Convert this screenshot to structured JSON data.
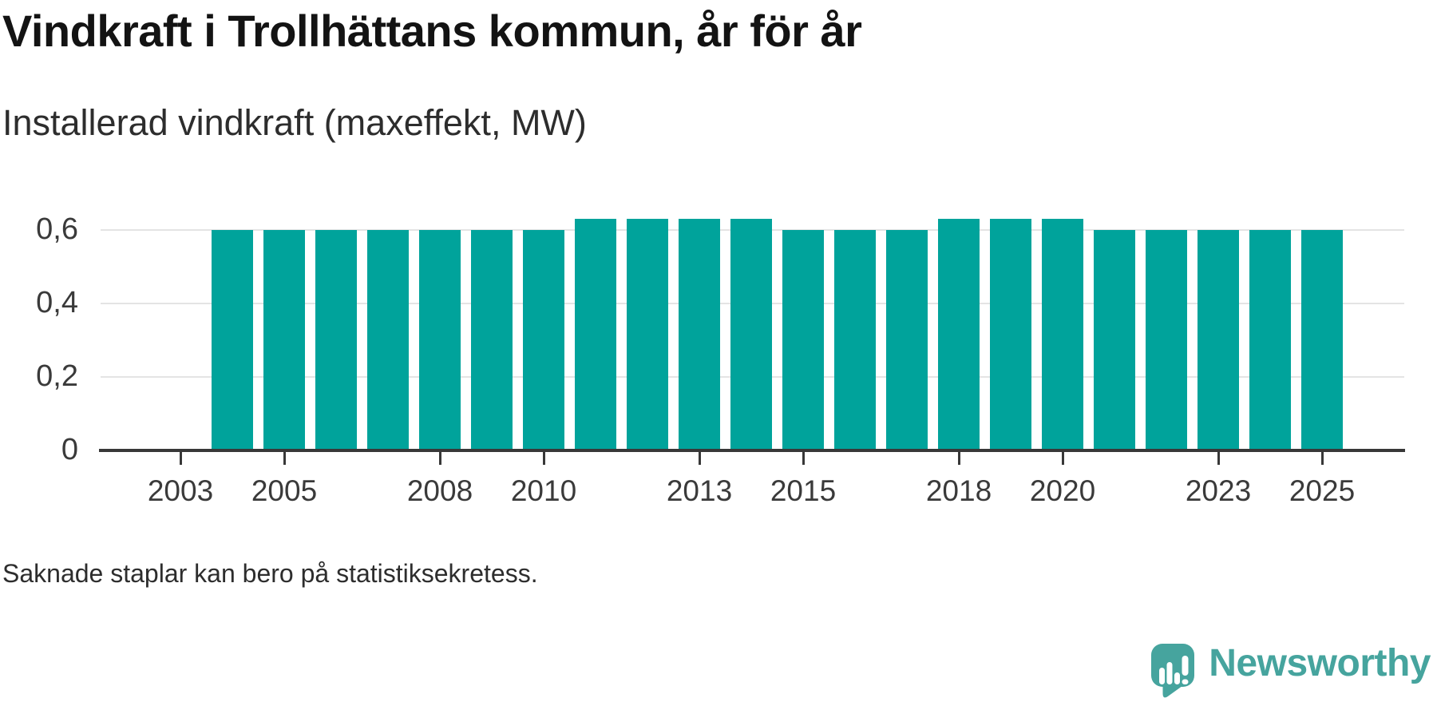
{
  "title": "Vindkraft i Trollhättans kommun, år för år",
  "subtitle": "Installerad vindkraft (maxeffekt, MW)",
  "footnote": "Saknade staplar kan bero på statistiksekretess.",
  "branding": {
    "wordmark": "Newsworthy",
    "logo_icon": "newsworthy-pin-logo",
    "brand_color": "#46a49e"
  },
  "colors": {
    "bar": "#00a39b",
    "axis": "#383838",
    "gridline": "#e4e4e4",
    "tick_label": "#3a3a3a",
    "title": "#131313",
    "text": "#2d2d2d"
  },
  "chart_data": {
    "type": "bar",
    "title": "Vindkraft i Trollhättans kommun, år för år",
    "subtitle": "Installerad vindkraft (maxeffekt, MW)",
    "xlabel": "",
    "ylabel": "Installerad vindkraft (maxeffekt, MW)",
    "categories": [
      2003,
      2004,
      2005,
      2006,
      2007,
      2008,
      2009,
      2010,
      2011,
      2012,
      2013,
      2014,
      2015,
      2016,
      2017,
      2018,
      2019,
      2020,
      2021,
      2022,
      2023,
      2024,
      2025
    ],
    "values": [
      null,
      0.6,
      0.6,
      0.6,
      0.6,
      0.6,
      0.6,
      0.6,
      0.63,
      0.63,
      0.63,
      0.63,
      0.6,
      0.6,
      0.6,
      0.63,
      0.63,
      0.63,
      0.6,
      0.6,
      0.6,
      0.6,
      0.6
    ],
    "missing_years": [
      2003
    ],
    "x_tick_labels": [
      "2003",
      "2005",
      "2008",
      "2010",
      "2013",
      "2015",
      "2018",
      "2020",
      "2023",
      "2025"
    ],
    "y_ticks": [
      {
        "value": 0,
        "label": "0"
      },
      {
        "value": 0.2,
        "label": "0,2"
      },
      {
        "value": 0.4,
        "label": "0,4"
      },
      {
        "value": 0.6,
        "label": "0,6"
      }
    ],
    "ylim": [
      0,
      0.65
    ],
    "grid": "horizontal",
    "legend": "none",
    "decimal_separator": ","
  }
}
